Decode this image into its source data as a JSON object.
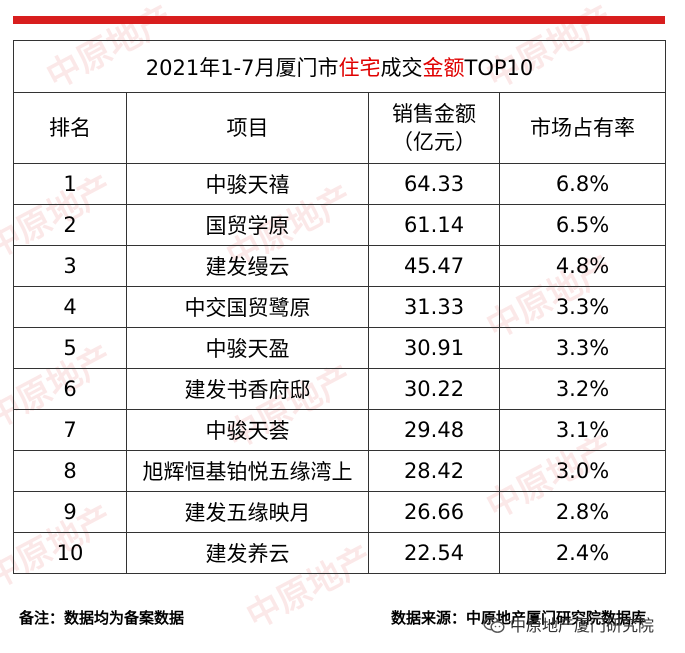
{
  "title": {
    "prefix": "2021年1-7月厦门市",
    "highlight1": "住宅",
    "middle": "成交",
    "highlight2": "金额",
    "suffix": "TOP10"
  },
  "headers": {
    "rank": "排名",
    "project": "项目",
    "sales_line1": "销售金额",
    "sales_line2": "（亿元）",
    "share": "市场占有率"
  },
  "rows": [
    {
      "rank": "1",
      "project": "中骏天禧",
      "sales": "64.33",
      "share": "6.8%"
    },
    {
      "rank": "2",
      "project": "国贸学原",
      "sales": "61.14",
      "share": "6.5%"
    },
    {
      "rank": "3",
      "project": "建发缦云",
      "sales": "45.47",
      "share": "4.8%"
    },
    {
      "rank": "4",
      "project": "中交国贸鹭原",
      "sales": "31.33",
      "share": "3.3%"
    },
    {
      "rank": "5",
      "project": "中骏天盈",
      "sales": "30.91",
      "share": "3.3%"
    },
    {
      "rank": "6",
      "project": "建发书香府邸",
      "sales": "30.22",
      "share": "3.2%"
    },
    {
      "rank": "7",
      "project": "中骏天荟",
      "sales": "29.48",
      "share": "3.1%"
    },
    {
      "rank": "8",
      "project": "旭辉恒基铂悦五缘湾上",
      "sales": "28.42",
      "share": "3.0%"
    },
    {
      "rank": "9",
      "project": "建发五缘映月",
      "sales": "26.66",
      "share": "2.8%"
    },
    {
      "rank": "10",
      "project": "建发养云",
      "sales": "22.54",
      "share": "2.4%"
    }
  ],
  "footer": {
    "note": "备注：数据均为备案数据",
    "source": "数据来源：中原地产厦门研究院数据库"
  },
  "wechat_label": "中原地产厦门研究院",
  "watermark_text": "中原地产",
  "colors": {
    "accent": "#d81e1e",
    "highlight": "#e00000"
  }
}
